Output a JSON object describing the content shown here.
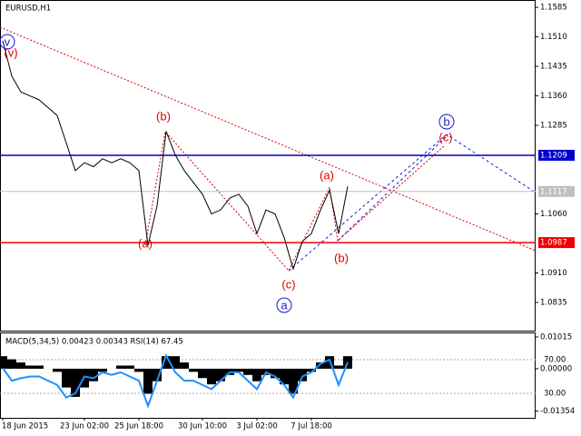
{
  "chart_data": [
    {
      "type": "line",
      "title": "EURUSD,H1",
      "categories": [
        "18 Jun 2015",
        null,
        null,
        null,
        null,
        null,
        null,
        null,
        null,
        "23 Jun 02:00",
        null,
        null,
        null,
        null,
        null,
        "25 Jun 18:00",
        null,
        null,
        null,
        null,
        null,
        null,
        "30 Jun 10:00",
        null,
        null,
        null,
        null,
        null,
        "3 Jul 02:00",
        null,
        null,
        null,
        null,
        null,
        "7 Jul 18:00",
        null,
        null,
        null,
        null
      ],
      "series": [
        {
          "color": "#000000",
          "values": [
            1.15,
            1.141,
            1.137,
            1.136,
            1.135,
            1.133,
            1.131,
            1.124,
            1.117,
            1.119,
            1.118,
            1.12,
            1.119,
            1.12,
            1.119,
            1.117,
            1.098,
            1.108,
            1.127,
            1.121,
            1.117,
            1.114,
            1.111,
            1.106,
            1.107,
            1.11,
            1.111,
            1.108,
            1.101,
            1.107,
            1.106,
            1.1,
            1.092,
            1.099,
            1.101,
            1.107,
            1.112,
            1.101,
            1.113
          ]
        }
      ],
      "ylim": [
        1.0761,
        1.1599
      ],
      "yticks": [
        {
          "value": 1.1585,
          "label": "1.1585"
        },
        {
          "value": 1.151,
          "label": "1.1510"
        },
        {
          "value": 1.1435,
          "label": "1.1435"
        },
        {
          "value": 1.136,
          "label": "1.1360"
        },
        {
          "value": 1.1285,
          "label": "1.1285"
        },
        {
          "value": 1.106,
          "label": "1.1060"
        },
        {
          "value": 1.091,
          "label": "1.0910"
        },
        {
          "value": 1.0835,
          "label": "1.0835"
        }
      ],
      "hlines": [
        {
          "value": 1.1209,
          "color": "#0000cc"
        },
        {
          "value": 1.0987,
          "color": "#ee0000"
        },
        {
          "value": 1.1117,
          "color": "#c0c0c0"
        }
      ],
      "annotations": [
        {
          "text": "v",
          "color": "#1a1acc"
        },
        {
          "text": "(v)",
          "color": "#dd0000"
        },
        {
          "text": "(b)",
          "color": "#dd0000"
        },
        {
          "text": "(a)",
          "color": "#dd0000"
        },
        {
          "text": "(c)",
          "color": "#dd0000"
        },
        {
          "text": "a",
          "color": "#1a1acc"
        },
        {
          "text": "(a)",
          "color": "#dd0000"
        },
        {
          "text": "(b)",
          "color": "#dd0000"
        },
        {
          "text": "b",
          "color": "#1a1acc"
        },
        {
          "text": "(c)",
          "color": "#dd0000"
        }
      ]
    },
    {
      "type": "bar",
      "title": "MACD(5,34,5) 0.00423 0.00343 RSI(14) 67.45",
      "series": [
        {
          "color": "#000000",
          "values": [
            0.004,
            0.003,
            0.002,
            0.001,
            0.001,
            0,
            -0.001,
            -0.006,
            -0.009,
            -0.006,
            -0.004,
            -0.001,
            0,
            0.001,
            0.001,
            -0.001,
            -0.008,
            -0.004,
            0.004,
            0.004,
            0.002,
            -0.001,
            -0.003,
            -0.005,
            -0.004,
            -0.002,
            -0.001,
            -0.002,
            -0.004,
            -0.002,
            -0.003,
            -0.005,
            -0.008,
            -0.004,
            -0.001,
            0.002,
            0.004,
            0.001,
            0.004
          ]
        },
        {
          "color": "#1e90ff",
          "axis": "y2",
          "values": [
            60,
            45,
            48,
            50,
            50,
            45,
            40,
            25,
            30,
            50,
            48,
            55,
            52,
            55,
            50,
            45,
            15,
            45,
            75,
            55,
            45,
            45,
            40,
            35,
            45,
            55,
            55,
            45,
            35,
            55,
            50,
            40,
            25,
            50,
            55,
            65,
            70,
            40,
            67
          ]
        }
      ],
      "ylim": [
        -0.0157,
        0.0113
      ],
      "yticks": [
        {
          "value": 0.01015,
          "label": "0.01015"
        },
        {
          "value": 0,
          "label": "0.00000"
        },
        {
          "value": -0.01354,
          "label": "-0.01354"
        }
      ],
      "y2lim": [
        0.8,
        101.4
      ],
      "y2ticks": [
        {
          "value": 70,
          "label": "70.00"
        },
        {
          "value": 30,
          "label": "30.00"
        }
      ]
    }
  ]
}
